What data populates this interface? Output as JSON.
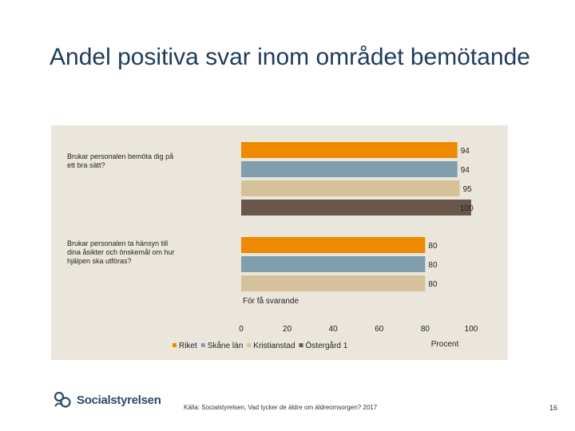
{
  "slide": {
    "title": "Andel positiva svar inom området bemötande",
    "source": "Källa: Socialstyrelsen, Vad tycker de äldre om äldreomsorgen? 2017",
    "page_number": "16",
    "logo_text": "Socialstyrelsen"
  },
  "chart_data": {
    "type": "bar",
    "orientation": "horizontal",
    "title": "",
    "xlabel": "Procent",
    "ylabel": "",
    "xlim": [
      0,
      100
    ],
    "x_ticks": [
      0,
      20,
      40,
      60,
      80,
      100
    ],
    "grid": false,
    "legend_position": "bottom",
    "categories": [
      "Brukar personalen bemöta dig på ett bra sätt?",
      "Brukar personalen ta hänsyn till dina åsikter och önskemål om hur hjälpen ska utföras?"
    ],
    "series": [
      {
        "name": "Riket",
        "color": "#ee8a00",
        "values": [
          94,
          80
        ]
      },
      {
        "name": "Skåne län",
        "color": "#7f9eae",
        "values": [
          94,
          80
        ]
      },
      {
        "name": "Kristianstad",
        "color": "#d6c29a",
        "values": [
          95,
          80
        ]
      },
      {
        "name": "Östergård 1",
        "color": "#6a574b",
        "values": [
          100,
          null
        ]
      }
    ],
    "annotations": [
      "För få svarande"
    ]
  }
}
